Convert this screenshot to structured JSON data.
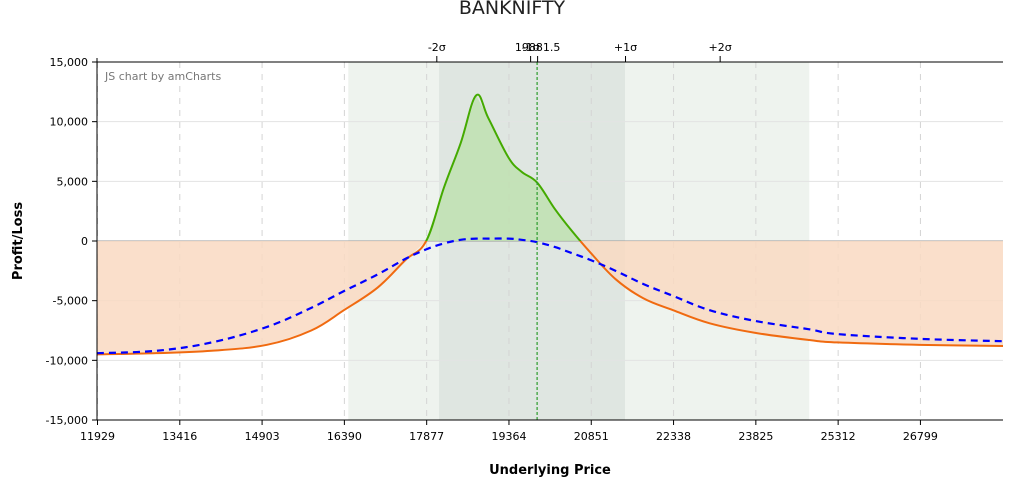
{
  "chart_data": {
    "type": "area",
    "title": "BANKNIFTY",
    "credit": "JS chart by amCharts",
    "xlabel": "Underlying Price",
    "ylabel": "Profit/Loss",
    "xlim": [
      11929,
      28300
    ],
    "ylim": [
      -15000,
      15000
    ],
    "x_ticks": [
      {
        "value": 11929,
        "label": "11929"
      },
      {
        "value": 13416,
        "label": "13416"
      },
      {
        "value": 14903,
        "label": "14903"
      },
      {
        "value": 16390,
        "label": "16390"
      },
      {
        "value": 17877,
        "label": "17877"
      },
      {
        "value": 19364,
        "label": "19364"
      },
      {
        "value": 20851,
        "label": "20851"
      },
      {
        "value": 22338,
        "label": "22338"
      },
      {
        "value": 23825,
        "label": "23825"
      },
      {
        "value": 25312,
        "label": "25312"
      },
      {
        "value": 26799,
        "label": "26799"
      }
    ],
    "y_ticks": [
      {
        "value": 15000,
        "label": "15,000"
      },
      {
        "value": 10000,
        "label": "10,000"
      },
      {
        "value": 5000,
        "label": "5,000"
      },
      {
        "value": 0,
        "label": "0"
      },
      {
        "value": -5000,
        "label": "-5,000"
      },
      {
        "value": -10000,
        "label": "-10,000"
      },
      {
        "value": -15000,
        "label": "-15,000"
      }
    ],
    "sigma_markers": [
      {
        "value": 18060,
        "label": "-2σ"
      },
      {
        "value": 19755,
        "label": "-1σ"
      },
      {
        "value": 21470,
        "label": "+1σ"
      },
      {
        "value": 23180,
        "label": "+2σ"
      }
    ],
    "sigma_bands": {
      "outer": [
        16470,
        24800
      ],
      "inner": [
        18110,
        21470
      ]
    },
    "current_price": {
      "value": 19881.5,
      "label": "19881.5"
    },
    "grid": true,
    "series": [
      {
        "color": "#ff6f00",
        "style": "solid",
        "x": [
          11929,
          13000,
          14000,
          15000,
          15800,
          16390,
          17000,
          17500,
          17877,
          18200,
          18500,
          18780,
          19000,
          19364,
          19600,
          19881.5,
          20200,
          20500,
          20851,
          21300,
          21800,
          22338,
          23000,
          23825,
          24800,
          25312,
          26799,
          28300
        ],
        "values": [
          -9500,
          -9400,
          -9200,
          -8700,
          -7500,
          -5800,
          -3900,
          -1600,
          0,
          4500,
          8200,
          12200,
          10300,
          7000,
          5800,
          4900,
          2700,
          900,
          -1000,
          -3200,
          -4800,
          -5800,
          -6900,
          -7700,
          -8300,
          -8500,
          -8700,
          -8800
        ]
      },
      {
        "color": "#0000ff",
        "style": "dashed",
        "x": [
          11929,
          13000,
          14000,
          15000,
          15800,
          16390,
          17000,
          17500,
          17877,
          18200,
          18500,
          18780,
          19000,
          19364,
          19600,
          19881.5,
          20200,
          20500,
          20851,
          21300,
          21800,
          22338,
          23000,
          23825,
          24800,
          25312,
          26799,
          28300
        ],
        "values": [
          -9400,
          -9200,
          -8500,
          -7200,
          -5600,
          -4200,
          -2800,
          -1500,
          -700,
          -200,
          100,
          200,
          200,
          200,
          100,
          -100,
          -500,
          -1000,
          -1600,
          -2500,
          -3600,
          -4600,
          -5800,
          -6700,
          -7400,
          -7800,
          -8200,
          -8400
        ]
      }
    ]
  },
  "colors": {
    "profit_fill": "#bfe0b0",
    "loss_fill": "#f9d9c2",
    "outer_band": "#eef3ee",
    "inner_band": "#dfe6e1",
    "profit_line": "#44aa00",
    "loss_line": "#f06a10",
    "current_price_line": "#2c9c2c"
  }
}
